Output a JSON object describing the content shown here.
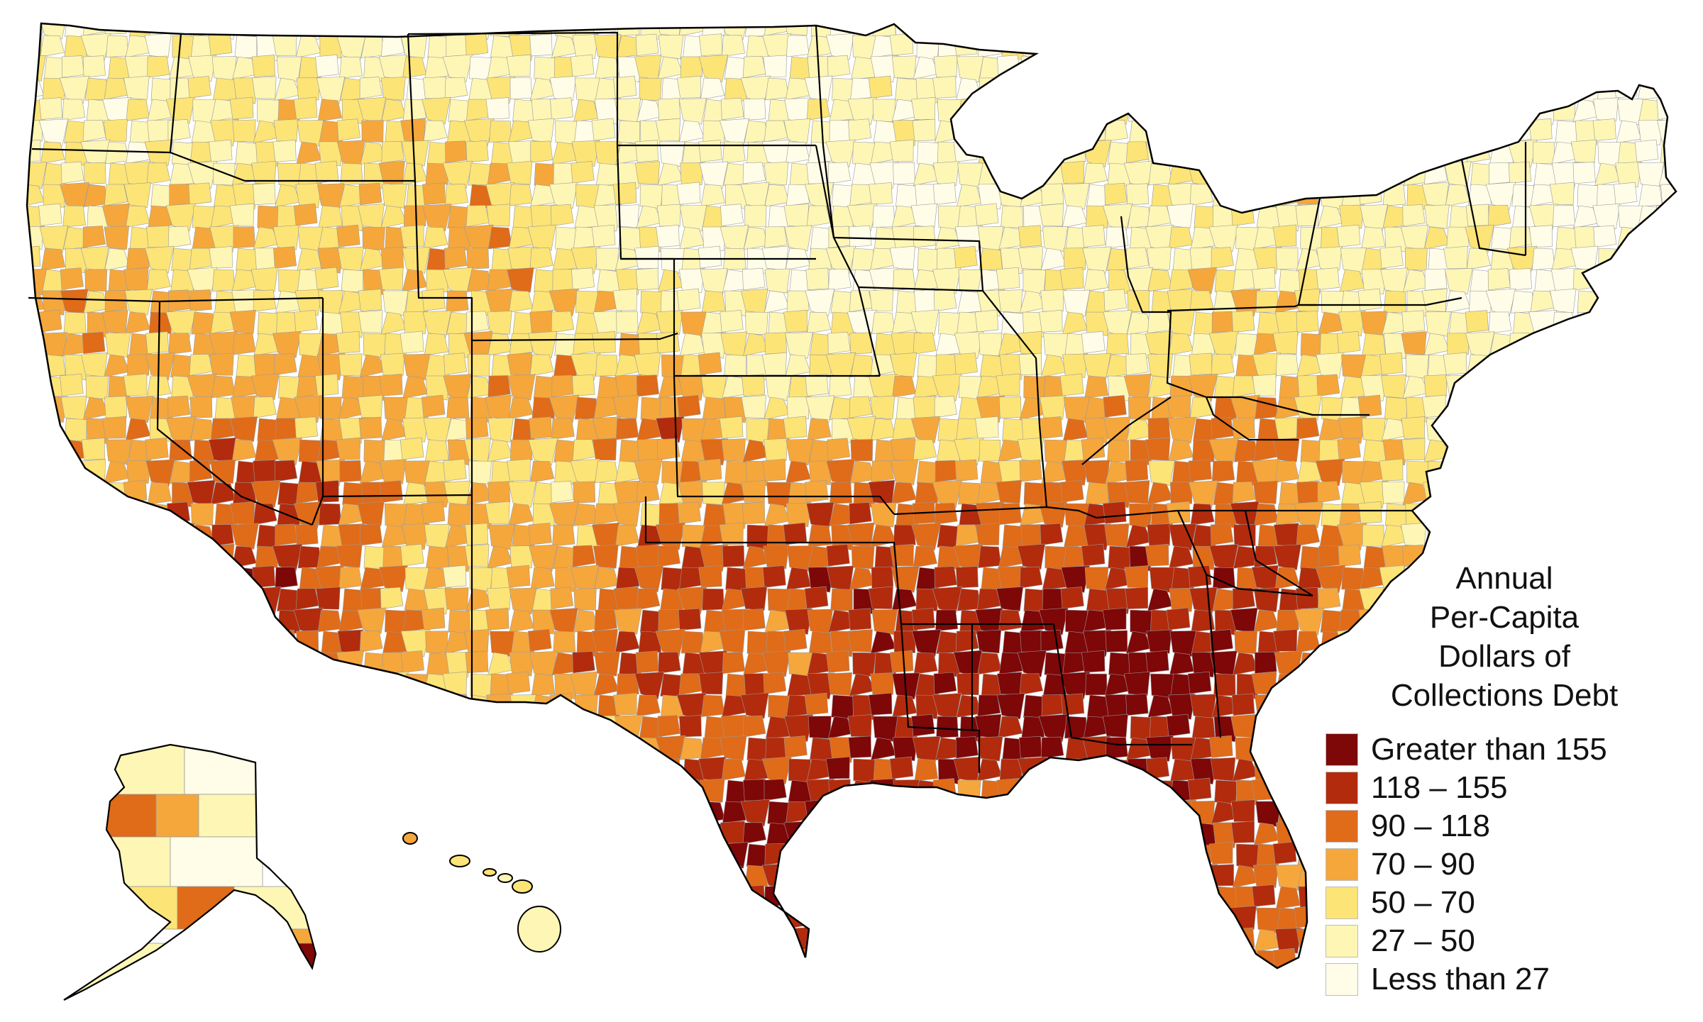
{
  "map": {
    "colors": {
      "greater_than_155": "#7e0708",
      "118_155": "#b22b0d",
      "90_118": "#e06b18",
      "70_90": "#f5a73c",
      "50_70": "#fce477",
      "27_50": "#fef6b5",
      "less_than_27": "#fffde8",
      "border": "#000000"
    },
    "regions": [
      {
        "name": "alaska",
        "value_class": "27_50"
      },
      {
        "name": "hawaii",
        "value_class": "50_70"
      }
    ]
  },
  "legend": {
    "title_lines": [
      "Annual",
      "Per-Capita",
      "Dollars of",
      "Collections Debt"
    ],
    "items": [
      {
        "label": "Greater than 155",
        "color": "#7e0708"
      },
      {
        "label": "118 – 155",
        "color": "#b22b0d"
      },
      {
        "label": "90 – 118",
        "color": "#e06b18"
      },
      {
        "label": "70 – 90",
        "color": "#f5a73c"
      },
      {
        "label": "50 – 70",
        "color": "#fce477"
      },
      {
        "label": "27 – 50",
        "color": "#fef6b5"
      },
      {
        "label": "Less than 27",
        "color": "#fffde8"
      }
    ]
  }
}
